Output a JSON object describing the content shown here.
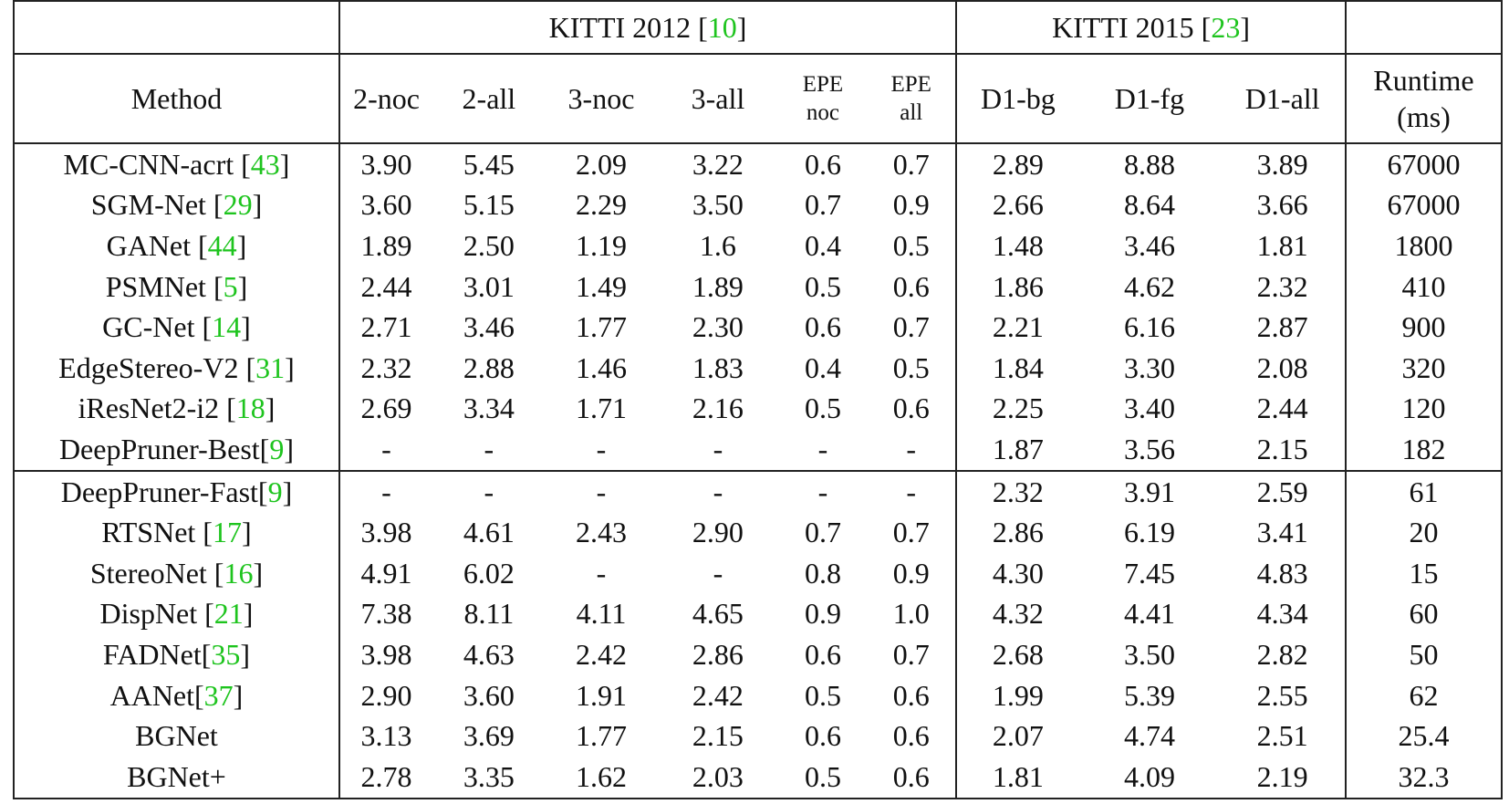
{
  "header": {
    "kitti2012": "KITTI 2012",
    "kitti2012_ref": "10",
    "kitti2015": "KITTI 2015",
    "kitti2015_ref": "23"
  },
  "columns": {
    "method": "Method",
    "c2noc": "2-noc",
    "c2all": "2-all",
    "c3noc": "3-noc",
    "c3all": "3-all",
    "epe_noc_1": "EPE",
    "epe_noc_2": "noc",
    "epe_all_1": "EPE",
    "epe_all_2": "all",
    "d1bg": "D1-bg",
    "d1fg": "D1-fg",
    "d1all": "D1-all",
    "runtime_1": "Runtime",
    "runtime_2": "(ms)"
  },
  "groups": [
    [
      {
        "name": "MC-CNN-acrt ",
        "ref": "43",
        "v": [
          "3.90",
          "5.45",
          "2.09",
          "3.22",
          "0.6",
          "0.7",
          "2.89",
          "8.88",
          "3.89",
          "67000"
        ],
        "b": []
      },
      {
        "name": "SGM-Net ",
        "ref": "29",
        "v": [
          "3.60",
          "5.15",
          "2.29",
          "3.50",
          "0.7",
          "0.9",
          "2.66",
          "8.64",
          "3.66",
          "67000"
        ],
        "b": []
      },
      {
        "name": "GANet ",
        "ref": "44",
        "v": [
          "1.89",
          "2.50",
          "1.19",
          "1.6",
          "0.4",
          "0.5",
          "1.48",
          "3.46",
          "1.81",
          "1800"
        ],
        "b": [
          0,
          1,
          2,
          3,
          6,
          8
        ]
      },
      {
        "name": "PSMNet ",
        "ref": "5",
        "v": [
          "2.44",
          "3.01",
          "1.49",
          "1.89",
          "0.5",
          "0.6",
          "1.86",
          "4.62",
          "2.32",
          "410"
        ],
        "b": []
      },
      {
        "name": "GC-Net ",
        "ref": "14",
        "v": [
          "2.71",
          "3.46",
          "1.77",
          "2.30",
          "0.6",
          "0.7",
          "2.21",
          "6.16",
          "2.87",
          "900"
        ],
        "b": []
      },
      {
        "name": "EdgeStereo-V2 ",
        "ref": "31",
        "v": [
          "2.32",
          "2.88",
          "1.46",
          "1.83",
          "0.4",
          "0.5",
          "1.84",
          "3.30",
          "2.08",
          "320"
        ],
        "b": [
          7
        ]
      },
      {
        "name": "iResNet2-i2 ",
        "ref": "18",
        "v": [
          "2.69",
          "3.34",
          "1.71",
          "2.16",
          "0.5",
          "0.6",
          "2.25",
          "3.40",
          "2.44",
          "120"
        ],
        "b": [
          9
        ]
      },
      {
        "name": "DeepPruner-Best",
        "ref": "9",
        "v": [
          "-",
          "-",
          "-",
          "-",
          "-",
          "-",
          "1.87",
          "3.56",
          "2.15",
          "182"
        ],
        "b": []
      }
    ],
    [
      {
        "name": "DeepPruner-Fast",
        "ref": "9",
        "v": [
          "-",
          "-",
          "-",
          "-",
          "-",
          "-",
          "2.32",
          "3.91",
          "2.59",
          "61"
        ],
        "b": []
      },
      {
        "name": "RTSNet ",
        "ref": "17",
        "v": [
          "3.98",
          "4.61",
          "2.43",
          "2.90",
          "0.7",
          "0.7",
          "2.86",
          "6.19",
          "3.41",
          "20"
        ],
        "b": []
      },
      {
        "name": "StereoNet ",
        "ref": "16",
        "v": [
          "4.91",
          "6.02",
          "-",
          "-",
          "0.8",
          "0.9",
          "4.30",
          "7.45",
          "4.83",
          "15"
        ],
        "b": [
          9
        ]
      },
      {
        "name": "DispNet ",
        "ref": "21",
        "v": [
          "7.38",
          "8.11",
          "4.11",
          "4.65",
          "0.9",
          "1.0",
          "4.32",
          "4.41",
          "4.34",
          "60"
        ],
        "b": []
      },
      {
        "name": "FADNet",
        "ref": "35",
        "v": [
          "3.98",
          "4.63",
          "2.42",
          "2.86",
          "0.6",
          "0.7",
          "2.68",
          "3.50",
          "2.82",
          "50"
        ],
        "b": [
          7
        ]
      },
      {
        "name": "AANet",
        "ref": "37",
        "v": [
          "2.90",
          "3.60",
          "1.91",
          "2.42",
          "0.5",
          "0.6",
          "1.99",
          "5.39",
          "2.55",
          "62"
        ],
        "b": []
      },
      {
        "name": "BGNet",
        "ref": "",
        "v": [
          "3.13",
          "3.69",
          "1.77",
          "2.15",
          "0.6",
          "0.6",
          "2.07",
          "4.74",
          "2.51",
          "25.4"
        ],
        "b": []
      },
      {
        "name": "BGNet+",
        "ref": "",
        "v": [
          "2.78",
          "3.35",
          "1.62",
          "2.03",
          "0.5",
          "0.6",
          "1.81",
          "4.09",
          "2.19",
          "32.3"
        ],
        "b": [
          0,
          1,
          2,
          3,
          6,
          8
        ]
      }
    ]
  ]
}
